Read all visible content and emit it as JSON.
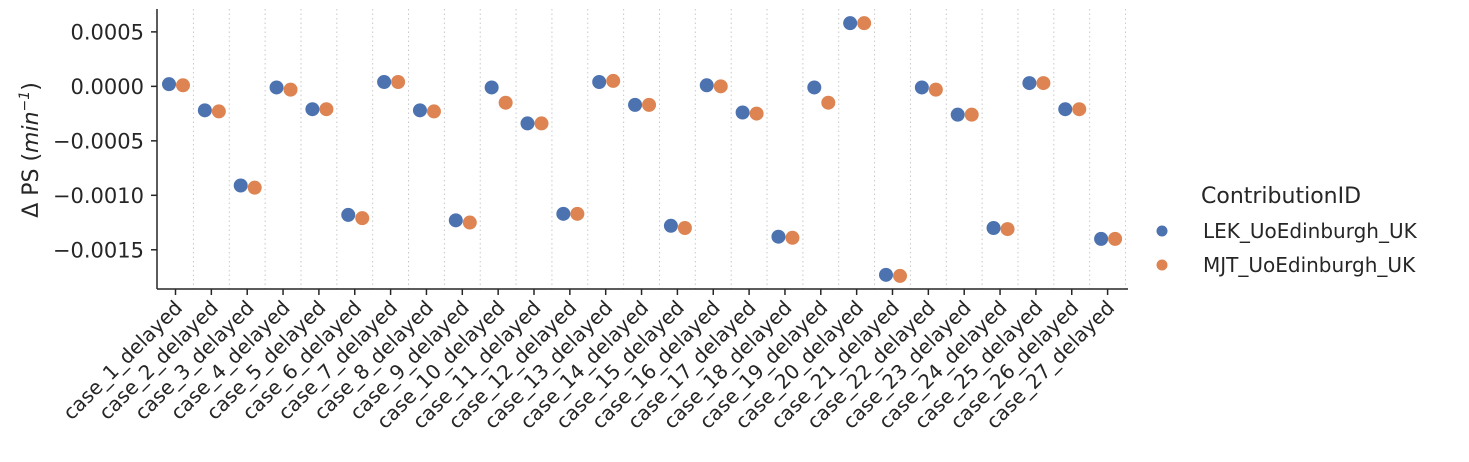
{
  "chart_data": {
    "type": "scatter",
    "title": "",
    "xlabel": "",
    "ylabel": "Δ PS (min⁻¹)",
    "ylabel_parts": {
      "prefix": "Δ PS (",
      "var": "min",
      "sup": "−1",
      "suffix": ")"
    },
    "ylim": [
      -0.00186,
      0.00071
    ],
    "yticks": [
      0.0005,
      0.0,
      -0.0005,
      -0.001,
      -0.0015
    ],
    "ytick_labels": [
      "0.0005",
      "0.0000",
      "−0.0005",
      "−0.0010",
      "−0.0015"
    ],
    "grid": "vertical dotted lines between categories",
    "legend": {
      "title": "ContributionID",
      "placement": "outside-right"
    },
    "categories": [
      "case_1_delayed",
      "case_2_delayed",
      "case_3_delayed",
      "case_4_delayed",
      "case_5_delayed",
      "case_6_delayed",
      "case_7_delayed",
      "case_8_delayed",
      "case_9_delayed",
      "case_10_delayed",
      "case_11_delayed",
      "case_12_delayed",
      "case_13_delayed",
      "case_14_delayed",
      "case_15_delayed",
      "case_16_delayed",
      "case_17_delayed",
      "case_18_delayed",
      "case_19_delayed",
      "case_20_delayed",
      "case_21_delayed",
      "case_22_delayed",
      "case_23_delayed",
      "case_24_delayed",
      "case_25_delayed",
      "case_26_delayed",
      "case_27_delayed"
    ],
    "series": [
      {
        "name": "LEK_UoEdinburgh_UK",
        "color": "#4c72b0",
        "values": [
          2e-05,
          -0.00022,
          -0.00091,
          -1e-05,
          -0.00021,
          -0.00118,
          4e-05,
          -0.00022,
          -0.00123,
          -1e-05,
          -0.00034,
          -0.00117,
          4e-05,
          -0.00017,
          -0.00128,
          1e-05,
          -0.00024,
          -0.00138,
          -1e-05,
          0.00058,
          -0.00173,
          -1e-05,
          -0.00026,
          -0.0013,
          3e-05,
          -0.00021,
          -0.0014
        ]
      },
      {
        "name": "MJT_UoEdinburgh_UK",
        "color": "#dd8452",
        "values": [
          1e-05,
          -0.00023,
          -0.00093,
          -3e-05,
          -0.00021,
          -0.00121,
          4e-05,
          -0.00023,
          -0.00125,
          -0.00015,
          -0.00034,
          -0.00117,
          5e-05,
          -0.00017,
          -0.0013,
          0.0,
          -0.00025,
          -0.00139,
          -0.00015,
          0.00058,
          -0.00174,
          -3e-05,
          -0.00026,
          -0.00131,
          3e-05,
          -0.00021,
          -0.0014
        ]
      }
    ]
  }
}
